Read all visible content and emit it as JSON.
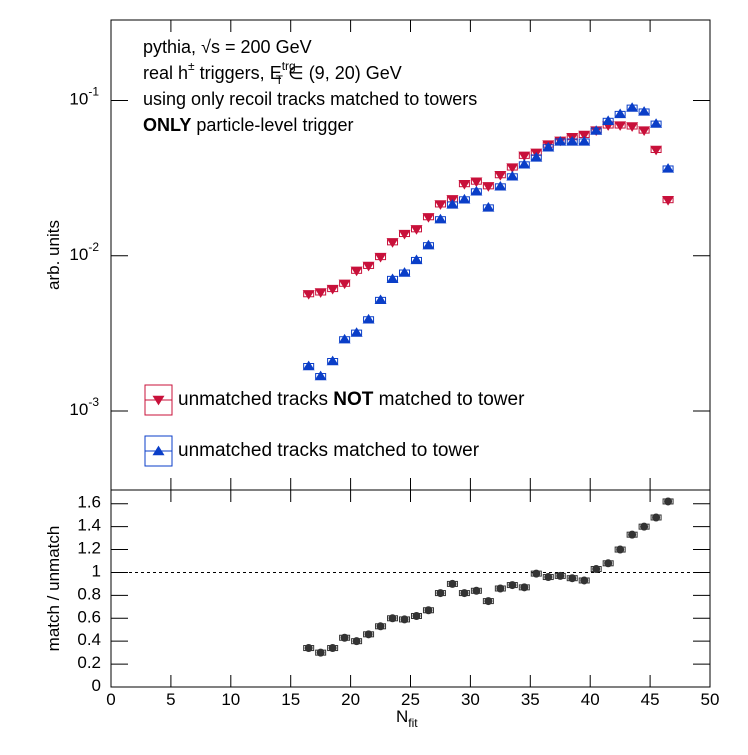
{
  "chart_data": [
    {
      "type": "scatter",
      "log_y": true,
      "ylabel": "arb. units",
      "annotations": [
        [
          {
            "t": "pythia, √s = 200 GeV"
          }
        ],
        [
          {
            "t": "real h"
          },
          {
            "t": "±",
            "s": "sup"
          },
          {
            "t": " triggers, E"
          },
          {
            "t": "trg",
            "s": "sup"
          },
          {
            "t": "T",
            "s": "sub-under"
          },
          {
            "t": " ∈ (9, 20) GeV"
          }
        ],
        [
          {
            "t": "using only recoil tracks matched to towers"
          }
        ],
        [
          {
            "t": "ONLY particle-level trigger"
          }
        ]
      ],
      "x": [
        16.5,
        17.5,
        18.5,
        19.5,
        20.5,
        21.5,
        22.5,
        23.5,
        24.5,
        25.5,
        26.5,
        27.5,
        28.5,
        29.5,
        30.5,
        31.5,
        32.5,
        33.5,
        34.5,
        35.5,
        36.5,
        37.5,
        38.5,
        39.5,
        40.5,
        41.5,
        42.5,
        43.5,
        44.5,
        45.5,
        46.5
      ],
      "xlim": [
        0,
        50
      ],
      "ylim": [
        0.00031,
        0.33
      ],
      "yticks": [
        {
          "value": 0.001,
          "label": "10",
          "exponent": "-3"
        },
        {
          "value": 0.01,
          "label": "10",
          "exponent": "-2"
        },
        {
          "value": 0.1,
          "label": "10",
          "exponent": "-1"
        }
      ],
      "series": [
        {
          "name": "unmatched tracks NOT matched to tower",
          "color": "#c8103a",
          "marker": "triangle-down",
          "values": [
            0.00565,
            0.0058,
            0.0061,
            0.0066,
            0.008,
            0.0086,
            0.0098,
            0.0122,
            0.0138,
            0.0148,
            0.0177,
            0.0214,
            0.0231,
            0.0289,
            0.03,
            0.028,
            0.033,
            0.037,
            0.044,
            0.046,
            0.052,
            0.055,
            0.058,
            0.06,
            0.064,
            0.069,
            0.069,
            0.068,
            0.064,
            0.048,
            0.0228
          ]
        },
        {
          "name": "unmatched tracks matched to tower",
          "color": "#0a3ec8",
          "marker": "triangle-up",
          "values": [
            0.00195,
            0.00168,
            0.0021,
            0.0029,
            0.0032,
            0.0039,
            0.0052,
            0.0071,
            0.0078,
            0.0094,
            0.0117,
            0.0172,
            0.0214,
            0.0231,
            0.026,
            0.0205,
            0.028,
            0.0325,
            0.0388,
            0.043,
            0.05,
            0.0545,
            0.0545,
            0.0545,
            0.064,
            0.074,
            0.082,
            0.09,
            0.085,
            0.071,
            0.0365
          ]
        }
      ]
    },
    {
      "type": "scatter",
      "ylabel": "match / unmatch",
      "xlabel": [
        {
          "t": "N"
        },
        {
          "t": "fit",
          "s": "sub"
        }
      ],
      "x": [
        16.5,
        17.5,
        18.5,
        19.5,
        20.5,
        21.5,
        22.5,
        23.5,
        24.5,
        25.5,
        26.5,
        27.5,
        28.5,
        29.5,
        30.5,
        31.5,
        32.5,
        33.5,
        34.5,
        35.5,
        36.5,
        37.5,
        38.5,
        39.5,
        40.5,
        41.5,
        42.5,
        43.5,
        44.5,
        45.5,
        46.5
      ],
      "values": [
        0.34,
        0.3,
        0.34,
        0.43,
        0.4,
        0.46,
        0.53,
        0.6,
        0.59,
        0.62,
        0.67,
        0.82,
        0.9,
        0.82,
        0.84,
        0.75,
        0.86,
        0.89,
        0.87,
        0.99,
        0.96,
        0.97,
        0.95,
        0.93,
        1.03,
        1.08,
        1.2,
        1.33,
        1.4,
        1.48,
        1.62
      ],
      "color": "#333333",
      "hline": 1,
      "xlim": [
        0,
        50
      ],
      "xticks": [
        0,
        5,
        10,
        15,
        20,
        25,
        30,
        35,
        40,
        45,
        50
      ],
      "ylim": [
        0,
        1.72
      ],
      "yticks": [
        0,
        0.2,
        0.4,
        0.6,
        0.8,
        1,
        1.2,
        1.4,
        1.6
      ]
    }
  ]
}
